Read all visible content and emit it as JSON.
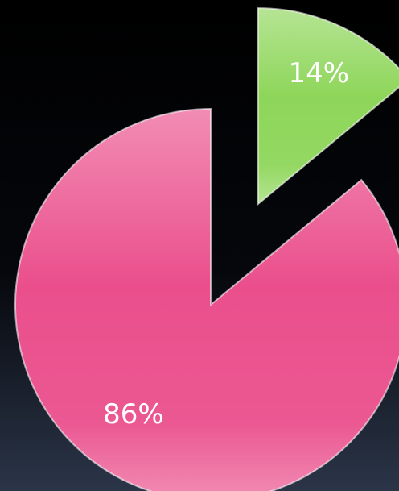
{
  "chart_data": {
    "type": "pie",
    "categories": [
      null,
      null
    ],
    "values": [
      14,
      86
    ],
    "value_labels": [
      "14%",
      "86%"
    ],
    "colors": [
      "#8ed65a",
      "#ea4f8c"
    ],
    "exploded": [
      true,
      false
    ]
  }
}
